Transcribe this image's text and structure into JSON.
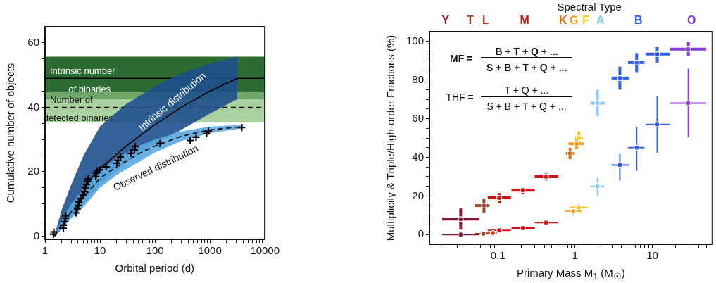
{
  "chart_data": [
    {
      "type": "line",
      "xlabel": "Orbital period (d)",
      "ylabel": "Cumulative number of objects",
      "log": "x",
      "grid": false,
      "legend": false,
      "xlim": [
        1,
        10000
      ],
      "ylim": [
        -1,
        65
      ],
      "xticks": [
        1,
        {
          "value": 2,
          "label": null
        },
        {
          "value": 3,
          "label": null
        },
        {
          "value": 4,
          "label": null
        },
        {
          "value": 5,
          "label": null
        },
        {
          "value": 6,
          "label": null
        },
        {
          "value": 7,
          "label": null
        },
        {
          "value": 8,
          "label": null
        },
        {
          "value": 9,
          "label": null
        },
        10,
        {
          "value": 20,
          "label": null
        },
        {
          "value": 30,
          "label": null
        },
        {
          "value": 40,
          "label": null
        },
        {
          "value": 50,
          "label": null
        },
        {
          "value": 60,
          "label": null
        },
        {
          "value": 70,
          "label": null
        },
        {
          "value": 80,
          "label": null
        },
        {
          "value": 90,
          "label": null
        },
        100,
        {
          "value": 200,
          "label": null
        },
        {
          "value": 300,
          "label": null
        },
        {
          "value": 400,
          "label": null
        },
        {
          "value": 500,
          "label": null
        },
        {
          "value": 600,
          "label": null
        },
        {
          "value": 700,
          "label": null
        },
        {
          "value": 800,
          "label": null
        },
        {
          "value": 900,
          "label": null
        },
        1000,
        {
          "value": 2000,
          "label": null
        },
        {
          "value": 3000,
          "label": null
        },
        {
          "value": 4000,
          "label": null
        },
        {
          "value": 5000,
          "label": null
        },
        {
          "value": 6000,
          "label": null
        },
        {
          "value": 7000,
          "label": null
        },
        {
          "value": 8000,
          "label": null
        },
        {
          "value": 9000,
          "label": null
        },
        10000
      ],
      "yticks": [
        0,
        {
          "value": 5,
          "label": null
        },
        {
          "value": 10,
          "label": null
        },
        {
          "value": 15,
          "label": null
        },
        20,
        {
          "value": 25,
          "label": null
        },
        {
          "value": 30,
          "label": null
        },
        {
          "value": 35,
          "label": null
        },
        40,
        {
          "value": 45,
          "label": null
        },
        {
          "value": 50,
          "label": null
        },
        {
          "value": 55,
          "label": null
        },
        60
      ],
      "bands": [
        {
          "axis": "y",
          "from": 44.7,
          "to": 55.7,
          "color": "#2e6b32"
        },
        {
          "axis": "y",
          "from": 42.5,
          "to": 44.7,
          "color": "#6fa86a"
        },
        {
          "axis": "y",
          "from": 35.3,
          "to": 42.5,
          "color": "#a8d0a0"
        }
      ],
      "ref_lines": [
        {
          "axis": "y",
          "value": 49,
          "label": "Intrinsic number of binaries",
          "line_style": "solid",
          "color": "#000000"
        },
        {
          "axis": "y",
          "value": 40,
          "label": "Number of detected binaries",
          "line_style": "dashed",
          "color": "#000000"
        }
      ],
      "series": [
        {
          "name": "Intrinsic distribution",
          "color": "#000000",
          "line_style": "solid",
          "x": [
            1.5,
            2,
            3,
            5,
            10,
            30,
            100,
            300,
            1000,
            3160
          ],
          "values": [
            0,
            4,
            9,
            15,
            21,
            28,
            34.6,
            40,
            45,
            49
          ],
          "upper": [
            0.5,
            8,
            16,
            25,
            34,
            41,
            46.5,
            50.5,
            53.5,
            55.7
          ],
          "lower": [
            0,
            2.5,
            6,
            10,
            16,
            23,
            28.5,
            33,
            38,
            42.6
          ]
        },
        {
          "name": "Observed distribution",
          "color": "#000000",
          "line_style": "dashed",
          "x": [
            1.5,
            2,
            3,
            5,
            10,
            20,
            50,
            100,
            300,
            1000,
            4000
          ],
          "values": [
            0,
            3.5,
            7.5,
            12,
            18,
            21.5,
            25.5,
            28,
            31,
            33,
            34
          ],
          "upper": [
            0.5,
            5,
            10,
            15,
            20.5,
            24,
            28,
            30,
            32.5,
            34,
            34.5
          ],
          "lower": [
            0,
            2,
            5.5,
            9,
            15,
            19,
            23,
            26,
            29.5,
            32,
            33.5
          ]
        },
        {
          "type": "scatter",
          "marker": "cross",
          "color": "#000000",
          "x": [
            1.42,
            1.45,
            2.15,
            2.17,
            2.3,
            2.36,
            2.38,
            3.67,
            3.85,
            4.05,
            4.1,
            4.45,
            4.9,
            5.2,
            5.4,
            5.7,
            6.0,
            6.1,
            8.4,
            8.6,
            9.0,
            9.8,
            13,
            20.3,
            21.3,
            23.5,
            36.5,
            42.4,
            43.5,
            124,
            440,
            560,
            870,
            940,
            3800
          ],
          "values": [
            0.6,
            1.3,
            2.4,
            3.4,
            4.5,
            5.6,
            6.3,
            7.2,
            8.5,
            9.5,
            10.6,
            11.7,
            12.8,
            13.8,
            14.9,
            16,
            17,
            17.8,
            18.5,
            19.6,
            20.3,
            20.6,
            21.5,
            22.6,
            23.5,
            24.6,
            25.7,
            26.8,
            27.8,
            28.8,
            29.7,
            30.7,
            31.8,
            32.6,
            33.7
          ]
        }
      ]
    },
    {
      "type": "scatter",
      "xlabel": "Primary Mass M$_{1}$ (M$_{☉}$)",
      "ylabel": "Multiplicity & Triple/High-order Fractions (%)",
      "log": "x",
      "grid": false,
      "legend": false,
      "marker": "circle",
      "xlim": [
        0.013,
        60
      ],
      "ylim": [
        -5,
        105
      ],
      "xticks": [
        {
          "value": 0.02,
          "label": null
        },
        {
          "value": 0.03,
          "label": null
        },
        {
          "value": 0.04,
          "label": null
        },
        {
          "value": 0.05,
          "label": null
        },
        {
          "value": 0.06,
          "label": null
        },
        {
          "value": 0.07,
          "label": null
        },
        {
          "value": 0.08,
          "label": null
        },
        {
          "value": 0.09,
          "label": null
        },
        0.1,
        {
          "value": 0.2,
          "label": null
        },
        {
          "value": 0.3,
          "label": null
        },
        {
          "value": 0.4,
          "label": null
        },
        {
          "value": 0.5,
          "label": null
        },
        {
          "value": 0.6,
          "label": null
        },
        {
          "value": 0.7,
          "label": null
        },
        {
          "value": 0.8,
          "label": null
        },
        {
          "value": 0.9,
          "label": null
        },
        1,
        {
          "value": 2,
          "label": null
        },
        {
          "value": 3,
          "label": null
        },
        {
          "value": 4,
          "label": null
        },
        {
          "value": 5,
          "label": null
        },
        {
          "value": 6,
          "label": null
        },
        {
          "value": 7,
          "label": null
        },
        {
          "value": 8,
          "label": null
        },
        {
          "value": 9,
          "label": null
        },
        10,
        {
          "value": 20,
          "label": null
        },
        {
          "value": 30,
          "label": null
        },
        {
          "value": 40,
          "label": null
        },
        {
          "value": 50,
          "label": null
        }
      ],
      "yticks": [
        0,
        {
          "value": 5,
          "label": null
        },
        {
          "value": 10,
          "label": null
        },
        {
          "value": 15,
          "label": null
        },
        20,
        {
          "value": 25,
          "label": null
        },
        {
          "value": 30,
          "label": null
        },
        {
          "value": 35,
          "label": null
        },
        40,
        {
          "value": 45,
          "label": null
        },
        {
          "value": 50,
          "label": null
        },
        {
          "value": 55,
          "label": null
        },
        60,
        {
          "value": 65,
          "label": null
        },
        {
          "value": 70,
          "label": null
        },
        {
          "value": 75,
          "label": null
        },
        80,
        {
          "value": 85,
          "label": null
        },
        {
          "value": 90,
          "label": null
        },
        {
          "value": 95,
          "label": null
        },
        100
      ],
      "annotations": [
        "MF =",
        "B + T + Q + ...",
        "S + B + T + Q + ...",
        "THF =",
        "T + Q + ...",
        "S + B + T + Q + ...",
        "Spectral Type",
        "Y",
        "T",
        "L",
        "M",
        "K",
        "G",
        "F",
        "A",
        "B",
        "O"
      ],
      "series": [
        {
          "x": [
            0.033,
            0.066,
            0.104,
            0.21,
            0.42,
            0.86,
            1.05,
            1.12,
            1.95,
            3.8,
            6.27,
            11.6,
            29.3
          ],
          "values": [
            8,
            15,
            19,
            23,
            30,
            42,
            47,
            50,
            68,
            81,
            89,
            93.4,
            96
          ],
          "colors": [
            "#7a1a3a",
            "#a0442a",
            "#d01010",
            "#d81010",
            "#d81010",
            "#e86a10",
            "#f0a020",
            "#f8c800",
            "#88ccf4",
            "#2f5fe8",
            "#2f5fe8",
            "#2f5fe8",
            "#8a3ce0"
          ],
          "errors": [
            [
              2.6,
              13.5
            ],
            [
              11.3,
              18.6
            ],
            [
              16.2,
              21.5
            ],
            [
              21.1,
              24.5
            ],
            [
              28,
              31.7
            ],
            [
              39.1,
              44.9
            ],
            [
              44.2,
              50.3
            ],
            [
              47,
              53.4
            ],
            [
              61.3,
              75
            ],
            [
              75,
              86.9
            ],
            [
              84.1,
              93.9
            ],
            [
              89,
              97
            ],
            [
              92.4,
              99.7
            ]
          ],
          "xerrors": [
            [
              0.019,
              0.057
            ],
            [
              0.05,
              0.078
            ],
            [
              0.074,
              0.148
            ],
            [
              0.15,
              0.3
            ],
            [
              0.3,
              0.6
            ],
            [
              0.76,
              0.99
            ],
            [
              0.82,
              1.29
            ],
            [
              1,
              1.27
            ],
            [
              1.58,
              2.41
            ],
            [
              2.97,
              5
            ],
            [
              4.84,
              7.9
            ],
            [
              8.17,
              16.9
            ],
            [
              16.9,
              50
            ]
          ]
        },
        {
          "x": [
            0.033,
            0.065,
            0.086,
            0.104,
            0.21,
            0.42,
            0.95,
            1.12,
            1.95,
            3.8,
            6.27,
            11.6,
            29.3
          ],
          "values": [
            0,
            0.5,
            0.8,
            2.2,
            3.4,
            6.2,
            12.2,
            14,
            25,
            36,
            45,
            57,
            68
          ],
          "colors": [
            "#7a1a3a",
            "#a0442a",
            "#d04020",
            "#d81010",
            "#d81010",
            "#d81010",
            "#f0a020",
            "#f8c800",
            "#88ccf4",
            "#2f5fe8",
            "#2f5fe8",
            "#2f5fe8",
            "#8a3ce0"
          ],
          "errors": [
            null,
            null,
            [
              0,
              2.6
            ],
            [
              1.2,
              3.2
            ],
            null,
            [
              5,
              7.5
            ],
            [
              10.1,
              14
            ],
            [
              12.2,
              15.9
            ],
            [
              19.9,
              29.6
            ],
            [
              28,
              41.8
            ],
            [
              33,
              55.8
            ],
            [
              42.4,
              71.9
            ],
            [
              50.3,
              85.9
            ]
          ],
          "xerrors": [
            [
              0.019,
              0.057
            ],
            [
              0.05,
              0.078
            ],
            [
              0.069,
              0.097
            ],
            [
              0.074,
              0.148
            ],
            [
              0.15,
              0.3
            ],
            [
              0.3,
              0.6
            ],
            [
              0.74,
              1.22
            ],
            [
              0.85,
              1.48
            ],
            [
              1.58,
              2.41
            ],
            [
              2.97,
              5
            ],
            [
              4.84,
              7.9
            ],
            [
              8.17,
              16.9
            ],
            [
              16.9,
              50
            ]
          ]
        }
      ]
    }
  ]
}
